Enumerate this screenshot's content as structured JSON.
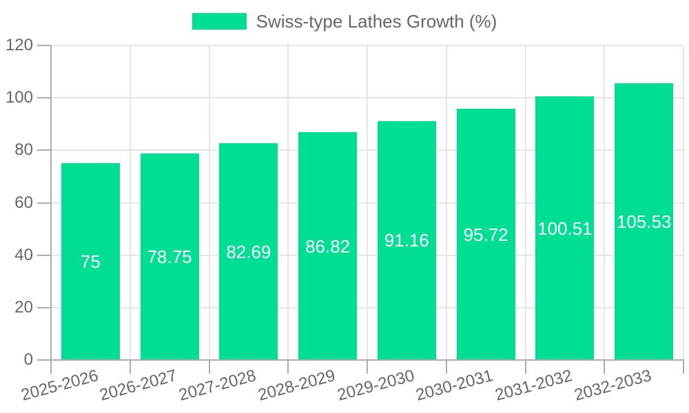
{
  "legend": {
    "label": "Swiss-type Lathes Growth (%)"
  },
  "colors": {
    "bar": "#00DE94",
    "grid": "#E5E5E5",
    "axis": "#ACACAC",
    "tick_text": "#666666",
    "value_label_text": "#FFFFFF",
    "background": "#FFFFFF"
  },
  "chart_data": {
    "type": "bar",
    "title": "",
    "legend_entries": [
      "Swiss-type Lathes Growth (%)"
    ],
    "legend_position": "top-center",
    "categories": [
      "2025-2026",
      "2026-2027",
      "2027-2028",
      "2028-2029",
      "2029-2030",
      "2030-2031",
      "2031-2032",
      "2032-2033"
    ],
    "values": [
      75,
      78.75,
      82.69,
      86.82,
      91.16,
      95.72,
      100.51,
      105.53
    ],
    "value_labels": [
      "75",
      "78.75",
      "82.69",
      "86.82",
      "91.16",
      "95.72",
      "100.51",
      "105.53"
    ],
    "xlabel": "",
    "ylabel": "",
    "ylim": [
      0,
      120
    ],
    "yticks": [
      0,
      20,
      40,
      60,
      80,
      100,
      120
    ],
    "grid": true,
    "bar_color": "#00DE94",
    "value_label_position": "center-inside",
    "x_label_rotation_deg": -15
  }
}
